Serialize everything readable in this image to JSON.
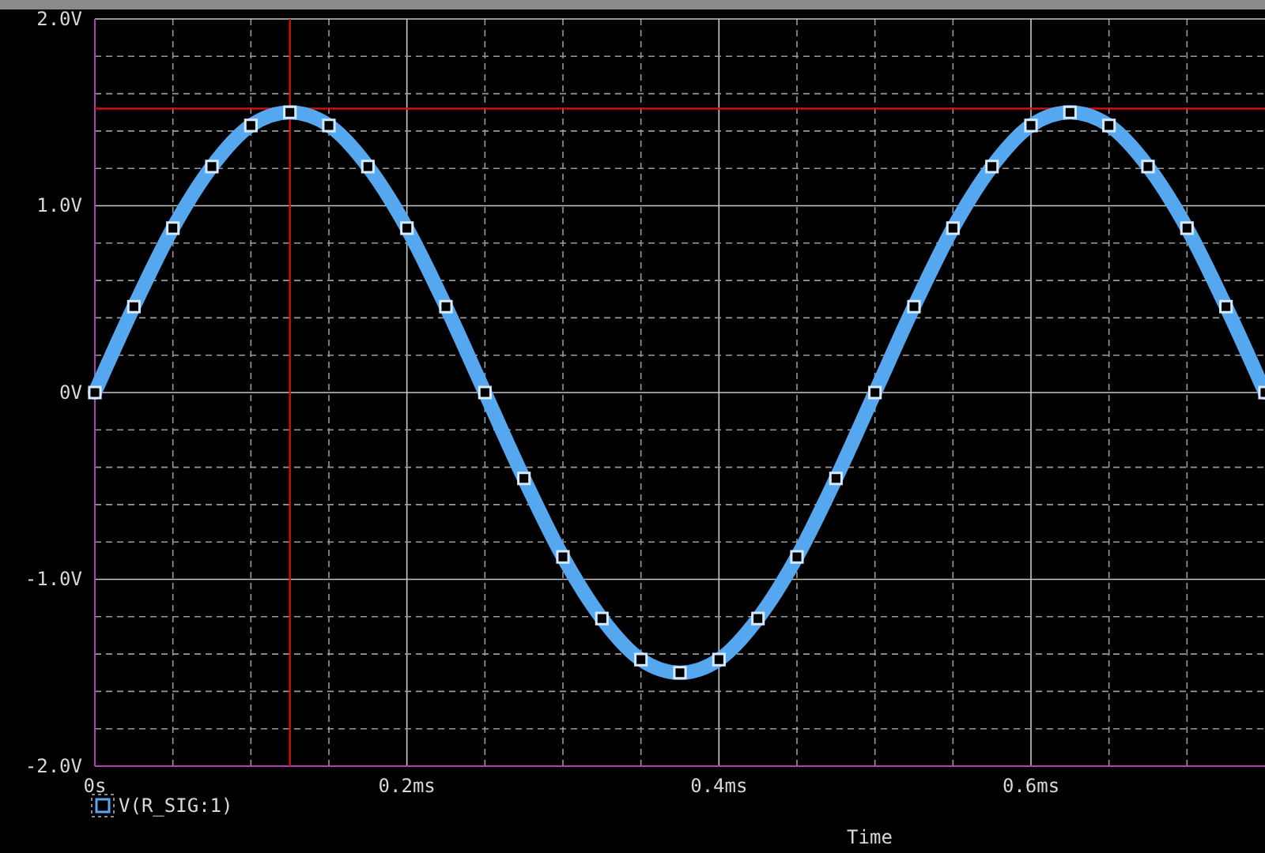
{
  "chart_data": {
    "type": "line",
    "xlabel": "Time",
    "x": [
      0,
      0.025,
      0.05,
      0.075,
      0.1,
      0.125,
      0.15,
      0.175,
      0.2,
      0.225,
      0.25,
      0.275,
      0.3,
      0.325,
      0.35,
      0.375,
      0.4,
      0.425,
      0.45,
      0.475,
      0.5,
      0.525,
      0.55,
      0.575,
      0.6,
      0.625,
      0.65,
      0.675,
      0.7,
      0.725,
      0.75
    ],
    "series": [
      {
        "name": "V(R_SIG:1)",
        "color": "#55a8f0",
        "values": [
          0,
          0.46,
          0.88,
          1.21,
          1.43,
          1.5,
          1.43,
          1.21,
          0.88,
          0.46,
          0,
          -0.46,
          -0.88,
          -1.21,
          -1.43,
          -1.5,
          -1.43,
          -1.21,
          -0.88,
          -0.46,
          0,
          0.46,
          0.88,
          1.21,
          1.43,
          1.5,
          1.43,
          1.21,
          0.88,
          0.46,
          0
        ]
      }
    ],
    "xlim": [
      0,
      0.75
    ],
    "xticks": [
      {
        "value": 0,
        "label": "0s"
      },
      {
        "value": 0.05,
        "label": null
      },
      {
        "value": 0.1,
        "label": null
      },
      {
        "value": 0.15,
        "label": null
      },
      {
        "value": 0.2,
        "label": "0.2ms"
      },
      {
        "value": 0.25,
        "label": null
      },
      {
        "value": 0.3,
        "label": null
      },
      {
        "value": 0.35,
        "label": null
      },
      {
        "value": 0.4,
        "label": "0.4ms"
      },
      {
        "value": 0.45,
        "label": null
      },
      {
        "value": 0.5,
        "label": null
      },
      {
        "value": 0.55,
        "label": null
      },
      {
        "value": 0.6,
        "label": "0.6ms"
      },
      {
        "value": 0.65,
        "label": null
      },
      {
        "value": 0.7,
        "label": null
      }
    ],
    "ylim": [
      -2,
      2
    ],
    "yticks": [
      {
        "value": -2,
        "label": "-2.0V"
      },
      {
        "value": -1.8,
        "label": null
      },
      {
        "value": -1.6,
        "label": null
      },
      {
        "value": -1.4,
        "label": null
      },
      {
        "value": -1.2,
        "label": null
      },
      {
        "value": -1,
        "label": "-1.0V"
      },
      {
        "value": -0.8,
        "label": null
      },
      {
        "value": -0.6,
        "label": null
      },
      {
        "value": -0.4,
        "label": null
      },
      {
        "value": -0.2,
        "label": null
      },
      {
        "value": 0,
        "label": "0V"
      },
      {
        "value": 0.2,
        "label": null
      },
      {
        "value": 0.4,
        "label": null
      },
      {
        "value": 0.6,
        "label": null
      },
      {
        "value": 0.8,
        "label": null
      },
      {
        "value": 1,
        "label": "1.0V"
      },
      {
        "value": 1.2,
        "label": null
      },
      {
        "value": 1.4,
        "label": null
      },
      {
        "value": 1.6,
        "label": null
      },
      {
        "value": 1.8,
        "label": null
      },
      {
        "value": 2,
        "label": "2.0V"
      }
    ],
    "grid": true,
    "marker": "square",
    "line_style": "solid",
    "legend": "bottom left",
    "ref_lines": [
      {
        "axis": "x",
        "value": 0.125,
        "color": "#d01010"
      },
      {
        "axis": "y",
        "value": 1.52,
        "color": "#d01010"
      }
    ]
  }
}
